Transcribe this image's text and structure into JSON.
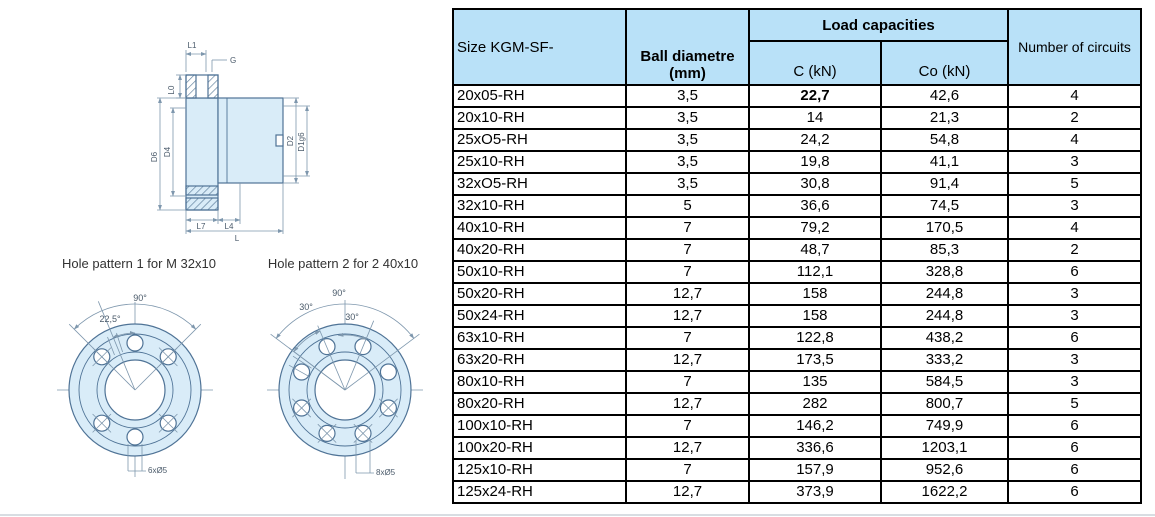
{
  "colors": {
    "header_bg": "#b9e1f8",
    "table_border": "#000000",
    "drawing_fill": "#d9ecf8",
    "drawing_line": "#4f7396"
  },
  "drawings": {
    "caption1": "Hole pattern 1 for M 32x10",
    "caption2": "Hole pattern 2 for 2 40x10",
    "cross_section_labels": {
      "l1": "L1",
      "g": "G",
      "l0": "L0",
      "d6": "D6",
      "d4": "D4",
      "d2": "D2",
      "d1g6": "D1g6",
      "l7": "L7",
      "l4": "L4",
      "l": "L"
    },
    "pattern1": {
      "angle_90": "90°",
      "angle_22_5": "22,5°",
      "holes_label": "6xØ5"
    },
    "pattern2": {
      "angle_90": "90°",
      "angle_30a": "30°",
      "angle_30b": "30°",
      "holes_label": "8xØ5"
    }
  },
  "table": {
    "header": {
      "col_size": "Size KGM-SF-",
      "col_ball_line1": "Ball diametre",
      "col_ball_line2": "(mm)",
      "col_load": "Load capacities",
      "col_c": "C (kN)",
      "col_co": "Co (kN)",
      "col_circuits": "Number of circuits"
    },
    "rows": [
      {
        "size": "20x05-RH",
        "ball": "3,5",
        "c": "22,7",
        "co": "42,6",
        "circuits": "4",
        "c_bold": true
      },
      {
        "size": "20x10-RH",
        "ball": "3,5",
        "c": "14",
        "co": "21,3",
        "circuits": "2"
      },
      {
        "size": "25xO5-RH",
        "ball": "3,5",
        "c": "24,2",
        "co": "54,8",
        "circuits": "4"
      },
      {
        "size": "25x10-RH",
        "ball": "3,5",
        "c": "19,8",
        "co": "41,1",
        "circuits": "3"
      },
      {
        "size": "32xO5-RH",
        "ball": "3,5",
        "c": "30,8",
        "co": "91,4",
        "circuits": "5"
      },
      {
        "size": "32x10-RH",
        "ball": "5",
        "c": "36,6",
        "co": "74,5",
        "circuits": "3"
      },
      {
        "size": "40x10-RH",
        "ball": "7",
        "c": "79,2",
        "co": "170,5",
        "circuits": "4"
      },
      {
        "size": "40x20-RH",
        "ball": "7",
        "c": "48,7",
        "co": "85,3",
        "circuits": "2"
      },
      {
        "size": "50x10-RH",
        "ball": "7",
        "c": "112,1",
        "co": "328,8",
        "circuits": "6"
      },
      {
        "size": "50x20-RH",
        "ball": "12,7",
        "c": "158",
        "co": "244,8",
        "circuits": "3"
      },
      {
        "size": "50x24-RH",
        "ball": "12,7",
        "c": "158",
        "co": "244,8",
        "circuits": "3"
      },
      {
        "size": "63x10-RH",
        "ball": "7",
        "c": "122,8",
        "co": "438,2",
        "circuits": "6"
      },
      {
        "size": "63x20-RH",
        "ball": "12,7",
        "c": "173,5",
        "co": "333,2",
        "circuits": "3"
      },
      {
        "size": "80x10-RH",
        "ball": "7",
        "c": "135",
        "co": "584,5",
        "circuits": "3"
      },
      {
        "size": "80x20-RH",
        "ball": "12,7",
        "c": "282",
        "co": "800,7",
        "circuits": "5"
      },
      {
        "size": "100x10-RH",
        "ball": "7",
        "c": "146,2",
        "co": "749,9",
        "circuits": "6"
      },
      {
        "size": "100x20-RH",
        "ball": "12,7",
        "c": "336,6",
        "co": "1203,1",
        "circuits": "6"
      },
      {
        "size": "125x10-RH",
        "ball": "7",
        "c": "157,9",
        "co": "952,6",
        "circuits": "6"
      },
      {
        "size": "125x24-RH",
        "ball": "12,7",
        "c": "373,9",
        "co": "1622,2",
        "circuits": "6"
      }
    ]
  }
}
